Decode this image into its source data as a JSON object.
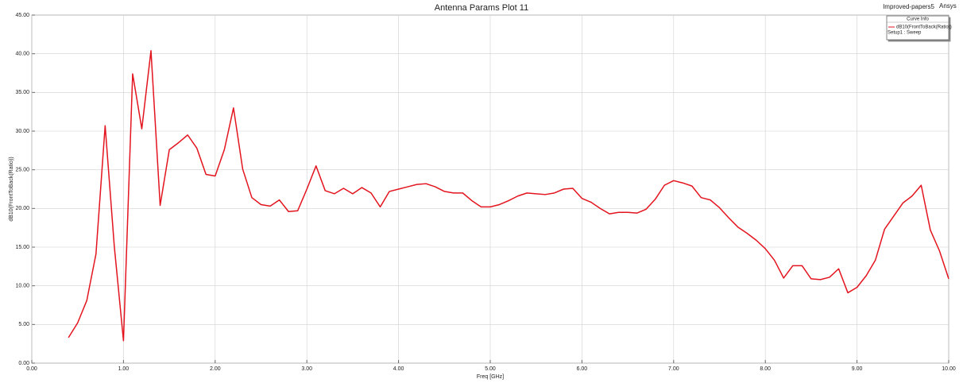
{
  "chart_data": {
    "type": "line",
    "title": "Antenna Params Plot 11",
    "header_project": "Improved-papers5",
    "header_brand": "Ansys",
    "x_label": "Freq [GHz]",
    "y_label": "dB10(FrontToBack(Ratio))",
    "legend_title": "Curve Info",
    "legend_subtitle": "Setup1 : Sweep",
    "legend_position": "upper-right",
    "grid": true,
    "x": [
      0.4,
      0.5,
      0.6,
      0.7,
      0.8,
      0.9,
      1.0,
      1.1,
      1.2,
      1.3,
      1.4,
      1.5,
      1.6,
      1.7,
      1.8,
      1.9,
      2.0,
      2.1,
      2.2,
      2.3,
      2.4,
      2.5,
      2.6,
      2.7,
      2.8,
      2.9,
      3.0,
      3.1,
      3.2,
      3.3,
      3.4,
      3.5,
      3.6,
      3.7,
      3.8,
      3.9,
      4.0,
      4.1,
      4.2,
      4.3,
      4.4,
      4.5,
      4.6,
      4.7,
      4.8,
      4.9,
      5.0,
      5.1,
      5.2,
      5.3,
      5.4,
      5.5,
      5.6,
      5.7,
      5.8,
      5.9,
      6.0,
      6.1,
      6.2,
      6.3,
      6.4,
      6.5,
      6.6,
      6.7,
      6.8,
      6.9,
      7.0,
      7.1,
      7.2,
      7.3,
      7.4,
      7.5,
      7.6,
      7.7,
      7.8,
      7.9,
      8.0,
      8.1,
      8.2,
      8.3,
      8.4,
      8.5,
      8.6,
      8.7,
      8.8,
      8.9,
      9.0,
      9.1,
      9.2,
      9.3,
      9.4,
      9.5,
      9.6,
      9.7,
      9.8,
      9.9,
      10.0
    ],
    "series": [
      {
        "name": "dB10(FrontToBack(Ratio))",
        "color": "#e3141e",
        "values": [
          3.3,
          5.2,
          8.1,
          14.1,
          30.7,
          15.1,
          2.9,
          37.4,
          30.3,
          40.4,
          20.4,
          27.6,
          28.5,
          29.5,
          27.8,
          24.4,
          24.2,
          27.6,
          33.0,
          25.1,
          21.4,
          20.5,
          20.3,
          21.1,
          19.6,
          19.7,
          22.5,
          25.5,
          22.3,
          21.9,
          22.6,
          21.9,
          22.7,
          22.0,
          20.2,
          22.2,
          22.5,
          22.8,
          23.1,
          23.2,
          22.8,
          22.2,
          22.0,
          22.0,
          21.0,
          20.2,
          20.2,
          20.5,
          21.0,
          21.6,
          22.0,
          21.9,
          21.8,
          22.0,
          22.5,
          22.6,
          21.3,
          20.8,
          20.0,
          19.3,
          19.5,
          19.5,
          19.4,
          19.9,
          21.2,
          23.0,
          23.6,
          23.3,
          22.9,
          21.4,
          21.1,
          20.1,
          18.8,
          17.6,
          16.8,
          15.9,
          14.8,
          13.3,
          11.0,
          12.6,
          12.6,
          10.9,
          10.8,
          11.1,
          12.2,
          9.1,
          9.8,
          11.3,
          13.3,
          17.3,
          19.0,
          20.7,
          21.6,
          23.0,
          17.2,
          14.5,
          10.9
        ]
      }
    ],
    "xlim": [
      0,
      10
    ],
    "xticks": [
      {
        "value": 0,
        "label": "0.00"
      },
      {
        "value": 1,
        "label": "1.00"
      },
      {
        "value": 2,
        "label": "2.00"
      },
      {
        "value": 3,
        "label": "3.00"
      },
      {
        "value": 4,
        "label": "4.00"
      },
      {
        "value": 5,
        "label": "5.00"
      },
      {
        "value": 6,
        "label": "6.00"
      },
      {
        "value": 7,
        "label": "7.00"
      },
      {
        "value": 8,
        "label": "8.00"
      },
      {
        "value": 9,
        "label": "9.00"
      },
      {
        "value": 10,
        "label": "10.00"
      }
    ],
    "ylim": [
      0,
      45
    ],
    "yticks": [
      {
        "value": 0,
        "label": "0.00"
      },
      {
        "value": 5,
        "label": "5.00"
      },
      {
        "value": 10,
        "label": "10.00"
      },
      {
        "value": 15,
        "label": "15.00"
      },
      {
        "value": 20,
        "label": "20.00"
      },
      {
        "value": 25,
        "label": "25.00"
      },
      {
        "value": 30,
        "label": "30.00"
      },
      {
        "value": 35,
        "label": "35.00"
      },
      {
        "value": 40,
        "label": "40.00"
      },
      {
        "value": 45,
        "label": "45.00"
      }
    ]
  }
}
